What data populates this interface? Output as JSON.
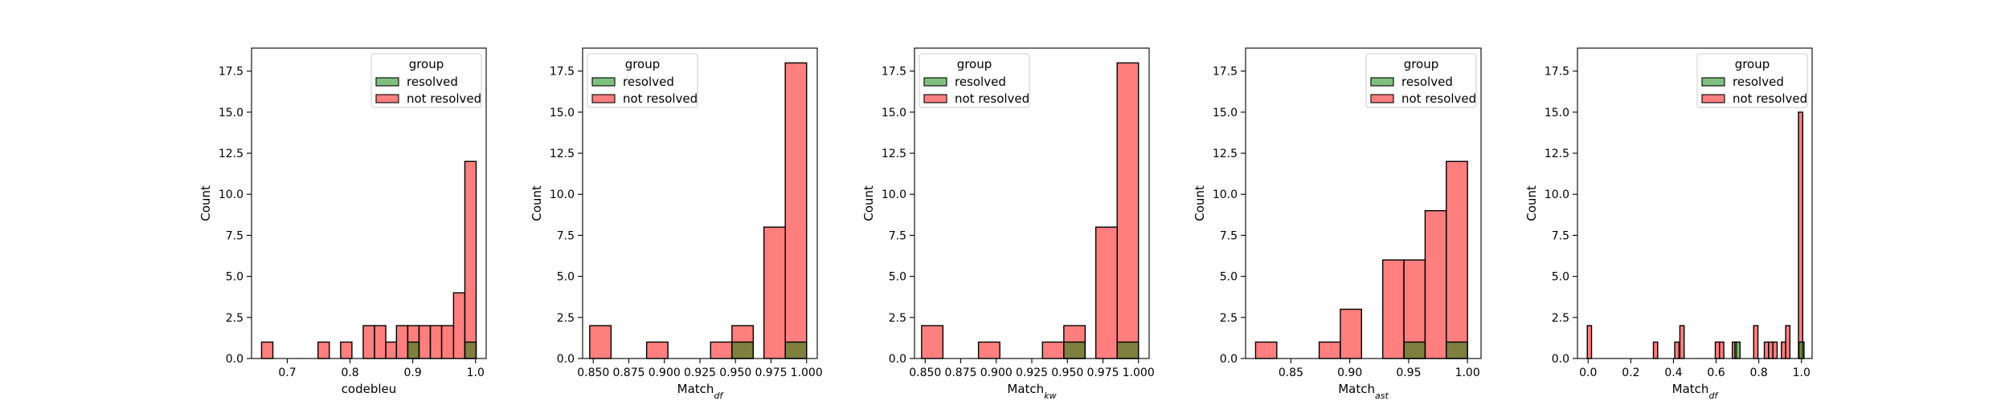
{
  "chart_data": [
    {
      "type": "bar",
      "xlabel": "codebleu",
      "ylabel": "Count",
      "xlim": [
        0.643,
        1.017
      ],
      "ylim": [
        0,
        18.9
      ],
      "xticks": [
        0.7,
        0.8,
        0.9,
        1.0
      ],
      "xtick_labels": [
        "0.7",
        "0.8",
        "0.9",
        "1.0"
      ],
      "yticks": [
        0,
        2.5,
        5,
        7.5,
        10,
        12.5,
        15,
        17.5
      ],
      "ytick_labels": [
        "0.0",
        "2.5",
        "5.0",
        "7.5",
        "10.0",
        "12.5",
        "15.0",
        "17.5"
      ],
      "legend": {
        "title": "group",
        "position": "top-right",
        "entries": [
          "resolved",
          "not resolved"
        ]
      },
      "series": [
        {
          "name": "resolved",
          "color": "#008000",
          "bins": [
            [
              0.892,
              0.91,
              1
            ],
            [
              0.983,
              1.001,
              1
            ]
          ]
        },
        {
          "name": "not resolved",
          "color": "#ff0000",
          "bins": [
            [
              0.659,
              0.677,
              1
            ],
            [
              0.749,
              0.767,
              1
            ],
            [
              0.785,
              0.803,
              1
            ],
            [
              0.821,
              0.839,
              2
            ],
            [
              0.839,
              0.857,
              2
            ],
            [
              0.857,
              0.874,
              1
            ],
            [
              0.874,
              0.892,
              2
            ],
            [
              0.892,
              0.91,
              2
            ],
            [
              0.91,
              0.928,
              2
            ],
            [
              0.928,
              0.946,
              2
            ],
            [
              0.946,
              0.965,
              2
            ],
            [
              0.965,
              0.983,
              4
            ],
            [
              0.983,
              1.001,
              12
            ]
          ]
        }
      ]
    },
    {
      "type": "bar",
      "xlabel": "Match",
      "xlabel_sub": "df",
      "ylabel": "Count",
      "xlim": [
        0.8425,
        1.0075
      ],
      "ylim": [
        0,
        18.9
      ],
      "xticks": [
        0.85,
        0.875,
        0.9,
        0.925,
        0.95,
        0.975,
        1.0
      ],
      "xtick_labels": [
        "0.850",
        "0.875",
        "0.900",
        "0.925",
        "0.950",
        "0.975",
        "1.000"
      ],
      "yticks": [
        0,
        2.5,
        5,
        7.5,
        10,
        12.5,
        15,
        17.5
      ],
      "ytick_labels": [
        "0.0",
        "2.5",
        "5.0",
        "7.5",
        "10.0",
        "12.5",
        "15.0",
        "17.5"
      ],
      "legend": {
        "title": "group",
        "position": "top-left",
        "entries": [
          "resolved",
          "not resolved"
        ]
      },
      "series": [
        {
          "name": "resolved",
          "color": "#008000",
          "bins": [
            [
              0.9475,
              0.9625,
              1
            ],
            [
              0.985,
              1.0,
              1
            ]
          ]
        },
        {
          "name": "not resolved",
          "color": "#ff0000",
          "bins": [
            [
              0.8475,
              0.8625,
              2
            ],
            [
              0.8875,
              0.9025,
              1
            ],
            [
              0.9325,
              0.9475,
              1
            ],
            [
              0.9475,
              0.9625,
              2
            ],
            [
              0.97,
              0.985,
              8
            ],
            [
              0.985,
              1.0,
              18
            ]
          ]
        }
      ]
    },
    {
      "type": "bar",
      "xlabel": "Match",
      "xlabel_sub": "kw",
      "ylabel": "Count",
      "xlim": [
        0.8425,
        1.0075
      ],
      "ylim": [
        0,
        18.9
      ],
      "xticks": [
        0.85,
        0.875,
        0.9,
        0.925,
        0.95,
        0.975,
        1.0
      ],
      "xtick_labels": [
        "0.850",
        "0.875",
        "0.900",
        "0.925",
        "0.950",
        "0.975",
        "1.000"
      ],
      "yticks": [
        0,
        2.5,
        5,
        7.5,
        10,
        12.5,
        15,
        17.5
      ],
      "ytick_labels": [
        "0.0",
        "2.5",
        "5.0",
        "7.5",
        "10.0",
        "12.5",
        "15.0",
        "17.5"
      ],
      "legend": {
        "title": "group",
        "position": "top-left",
        "entries": [
          "resolved",
          "not resolved"
        ]
      },
      "series": [
        {
          "name": "resolved",
          "color": "#008000",
          "bins": [
            [
              0.9475,
              0.9625,
              1
            ],
            [
              0.985,
              1.0,
              1
            ]
          ]
        },
        {
          "name": "not resolved",
          "color": "#ff0000",
          "bins": [
            [
              0.8475,
              0.8625,
              2
            ],
            [
              0.8875,
              0.9025,
              1
            ],
            [
              0.9325,
              0.9475,
              1
            ],
            [
              0.9475,
              0.9625,
              2
            ],
            [
              0.97,
              0.985,
              8
            ],
            [
              0.985,
              1.0,
              18
            ]
          ]
        }
      ]
    },
    {
      "type": "bar",
      "xlabel": "Match",
      "xlabel_sub": "ast",
      "ylabel": "Count",
      "xlim": [
        0.8115,
        1.0115
      ],
      "ylim": [
        0,
        18.9
      ],
      "xticks": [
        0.85,
        0.9,
        0.95,
        1.0
      ],
      "xtick_labels": [
        "0.85",
        "0.90",
        "0.95",
        "1.00"
      ],
      "yticks": [
        0,
        2.5,
        5,
        7.5,
        10,
        12.5,
        15,
        17.5
      ],
      "ytick_labels": [
        "0.0",
        "2.5",
        "5.0",
        "7.5",
        "10.0",
        "12.5",
        "15.0",
        "17.5"
      ],
      "legend": {
        "title": "group",
        "position": "top-right",
        "entries": [
          "resolved",
          "not resolved"
        ]
      },
      "series": [
        {
          "name": "resolved",
          "color": "#008000",
          "bins": [
            [
              0.946,
              0.964,
              1
            ],
            [
              0.982,
              1.0,
              1
            ]
          ]
        },
        {
          "name": "not resolved",
          "color": "#ff0000",
          "bins": [
            [
              0.82,
              0.838,
              1
            ],
            [
              0.874,
              0.892,
              1
            ],
            [
              0.892,
              0.91,
              3
            ],
            [
              0.928,
              0.946,
              6
            ],
            [
              0.946,
              0.964,
              6
            ],
            [
              0.964,
              0.982,
              9
            ],
            [
              0.982,
              1.0,
              12
            ]
          ]
        }
      ]
    },
    {
      "type": "bar",
      "xlabel": "Match",
      "xlabel_sub": "df",
      "ylabel": "Count",
      "xlim": [
        -0.05,
        1.05
      ],
      "ylim": [
        0,
        18.9
      ],
      "xticks": [
        0.0,
        0.2,
        0.4,
        0.6,
        0.8,
        1.0
      ],
      "xtick_labels": [
        "0.0",
        "0.2",
        "0.4",
        "0.6",
        "0.8",
        "1.0"
      ],
      "yticks": [
        0,
        2.5,
        5,
        7.5,
        10,
        12.5,
        15,
        17.5
      ],
      "ytick_labels": [
        "0.0",
        "2.5",
        "5.0",
        "7.5",
        "10.0",
        "12.5",
        "15.0",
        "17.5"
      ],
      "legend": {
        "title": "group",
        "position": "top-right",
        "entries": [
          "resolved",
          "not resolved"
        ]
      },
      "series": [
        {
          "name": "resolved",
          "color": "#008000",
          "bins": [
            [
              0.688,
              0.712,
              1
            ],
            [
              0.988,
              1.012,
              1
            ]
          ]
        },
        {
          "name": "not resolved",
          "color": "#ff0000",
          "bins": [
            [
              -0.004,
              0.016,
              2
            ],
            [
              0.306,
              0.326,
              1
            ],
            [
              0.406,
              0.426,
              1
            ],
            [
              0.43,
              0.45,
              2
            ],
            [
              0.596,
              0.616,
              1
            ],
            [
              0.616,
              0.636,
              1
            ],
            [
              0.676,
              0.696,
              1
            ],
            [
              0.776,
              0.796,
              2
            ],
            [
              0.826,
              0.846,
              1
            ],
            [
              0.846,
              0.866,
              1
            ],
            [
              0.866,
              0.886,
              1
            ],
            [
              0.906,
              0.926,
              1
            ],
            [
              0.926,
              0.946,
              2
            ],
            [
              0.986,
              1.006,
              15
            ]
          ]
        }
      ]
    }
  ]
}
